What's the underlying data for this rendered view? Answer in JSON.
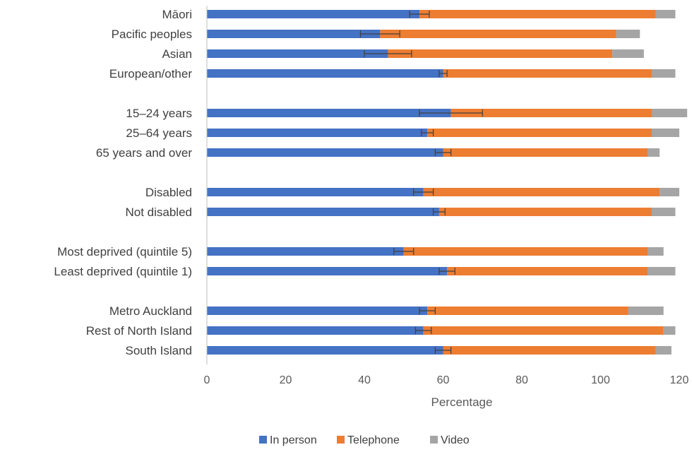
{
  "chart_data": {
    "type": "bar",
    "orientation": "horizontal",
    "stacked": true,
    "title": "",
    "xlabel": "Percentage",
    "ylabel": "",
    "xlim": [
      0,
      120
    ],
    "xticks": [
      0,
      20,
      40,
      60,
      80,
      100,
      120
    ],
    "grid": false,
    "legend_position": "bottom",
    "categories": [
      "Māori",
      "Pacific peoples",
      "Asian",
      "European/other",
      "15–24 years",
      "25–64 years",
      "65 years and over",
      "Disabled",
      "Not disabled",
      "Most deprived (quintile 5)",
      "Least deprived (quintile 1)",
      "Metro Auckland",
      "Rest of North Island",
      "South Island"
    ],
    "groups": [
      4,
      3,
      2,
      2,
      3
    ],
    "series": [
      {
        "name": "In person",
        "color": "#4472C4",
        "values": [
          54,
          44,
          46,
          60,
          62,
          56,
          60,
          55,
          59,
          50,
          61,
          56,
          55,
          60
        ],
        "error": [
          2.5,
          5,
          6,
          1,
          8,
          1.5,
          2,
          2.5,
          1.5,
          2.5,
          2,
          2,
          2,
          2
        ]
      },
      {
        "name": "Telephone",
        "color": "#ED7D31",
        "values": [
          60,
          60,
          57,
          53,
          51,
          57,
          52,
          60,
          54,
          62,
          51,
          51,
          61,
          54
        ]
      },
      {
        "name": "Video",
        "color": "#A5A5A5",
        "values": [
          5,
          6,
          8,
          6,
          9,
          7,
          3,
          5,
          6,
          4,
          7,
          9,
          3,
          4
        ]
      }
    ]
  }
}
